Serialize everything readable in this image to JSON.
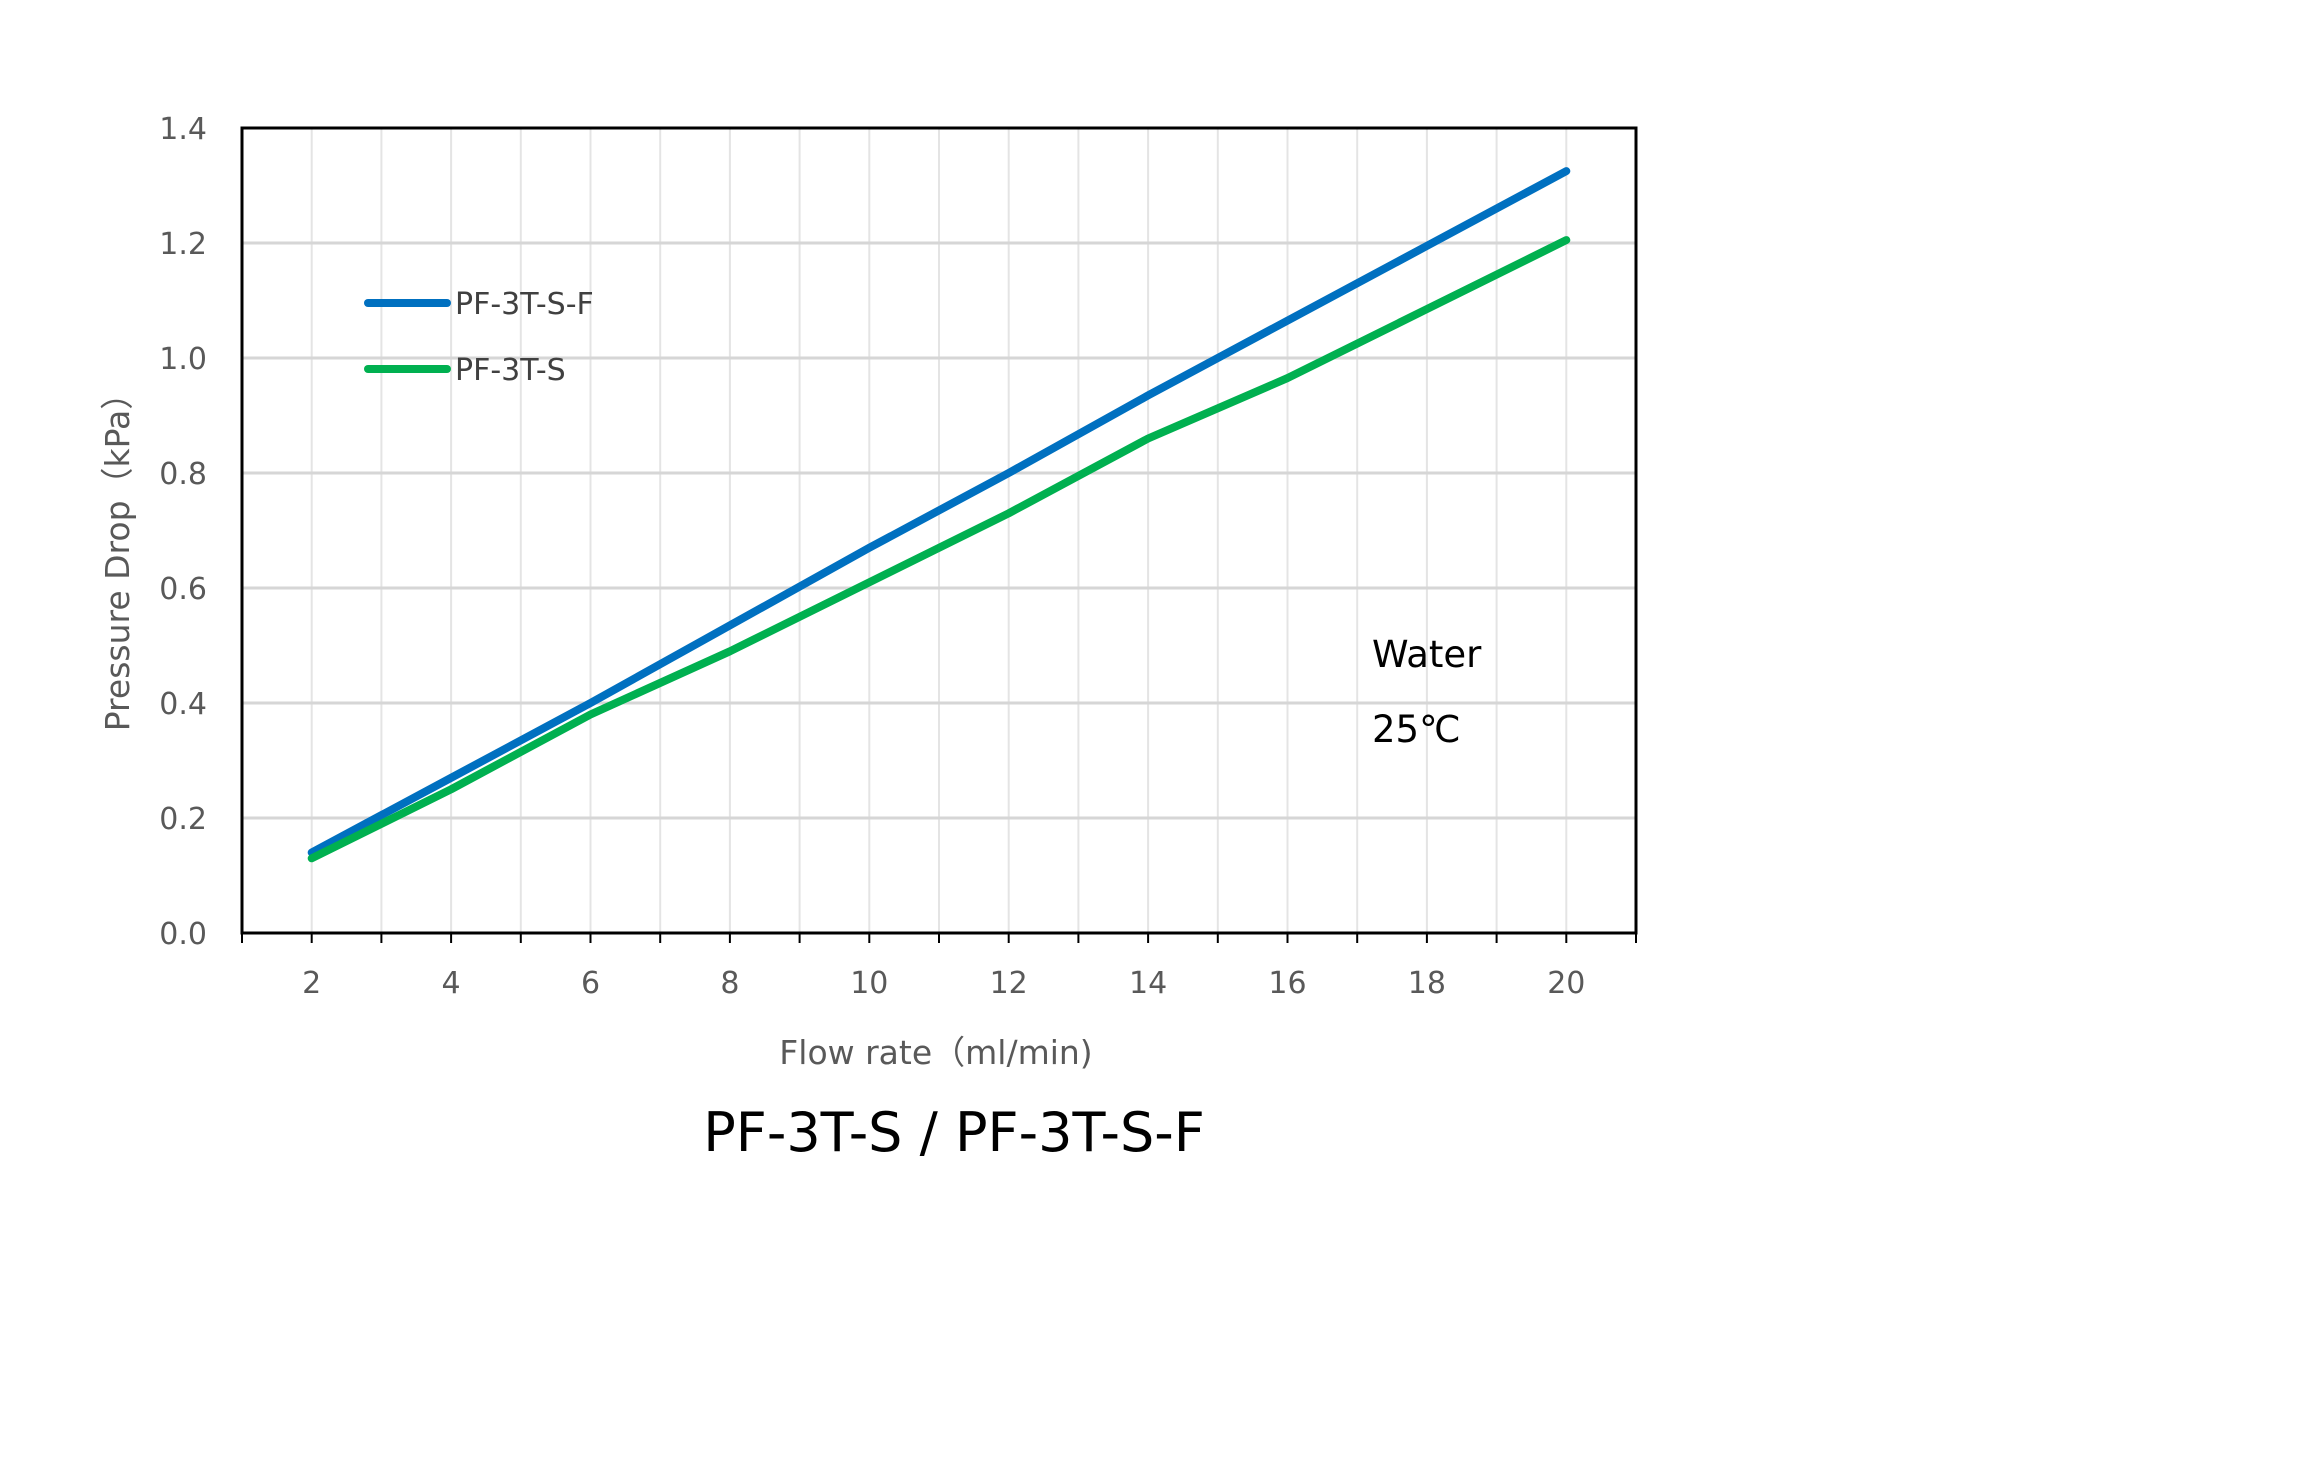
{
  "chart_data": {
    "type": "line",
    "title": "PF-3T-S / PF-3T-S-F",
    "xlabel": "Flow rate（ml/min)",
    "ylabel": "Pressure Drop（kPa）",
    "x": [
      2,
      4,
      6,
      8,
      10,
      12,
      14,
      16,
      18,
      20
    ],
    "x_ticks": [
      "2",
      "4",
      "6",
      "8",
      "10",
      "12",
      "14",
      "16",
      "18",
      "20"
    ],
    "y_ticks": [
      "0.0",
      "0.2",
      "0.4",
      "0.6",
      "0.8",
      "1.0",
      "1.2",
      "1.4"
    ],
    "xlim": [
      1,
      21
    ],
    "ylim": [
      0,
      1.4
    ],
    "grid": true,
    "legend_position": "top-left",
    "series": [
      {
        "name": "PF-3T-S-F",
        "color": "#0070C0",
        "values": [
          0.14,
          0.27,
          0.4,
          0.535,
          0.67,
          0.8,
          0.935,
          1.065,
          1.195,
          1.325
        ]
      },
      {
        "name": "PF-3T-S",
        "color": "#00B050",
        "values": [
          0.13,
          0.25,
          0.38,
          0.49,
          0.61,
          0.73,
          0.86,
          0.965,
          1.085,
          1.205
        ]
      }
    ],
    "annotations": [
      "Water",
      "25℃"
    ]
  }
}
